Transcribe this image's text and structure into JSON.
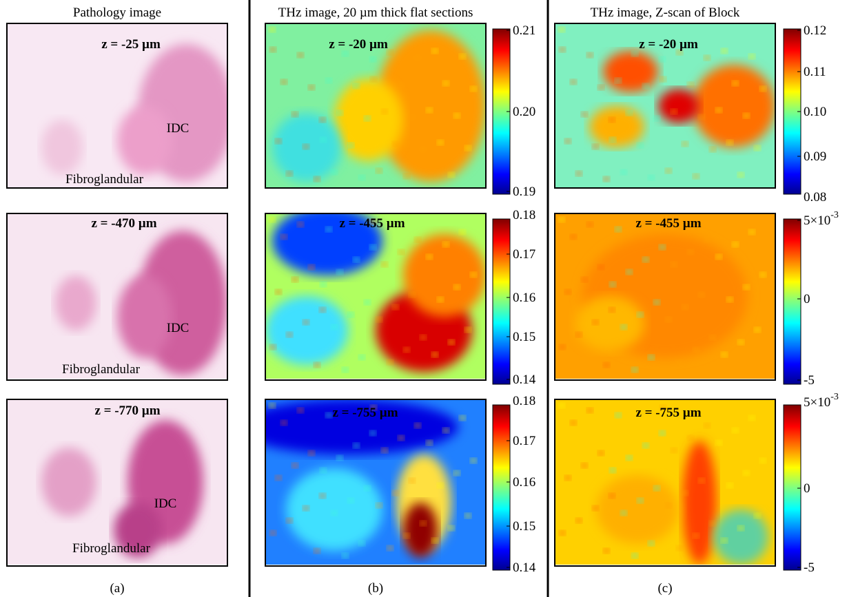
{
  "columns": [
    {
      "title": "Pathology image",
      "caption": "(a)",
      "panels": [
        {
          "z_label": "z = -25 µm",
          "annotations": [
            "IDC",
            "Fibroglandular"
          ]
        },
        {
          "z_label": "z = -470 µm",
          "annotations": [
            "IDC",
            "Fibroglandular"
          ]
        },
        {
          "z_label": "z = -770 µm",
          "annotations": [
            "IDC",
            "Fibroglandular"
          ]
        }
      ]
    },
    {
      "title": "THz image, 20 µm thick flat sections",
      "caption": "(b)",
      "panels": [
        {
          "z_label": "z = -20 µm",
          "colorbar_ticks": [
            "0.21",
            "0.20",
            "0.19"
          ]
        },
        {
          "z_label": "z = -455 µm",
          "colorbar_ticks": [
            "0.18",
            "0.17",
            "0.16",
            "0.15",
            "0.14"
          ]
        },
        {
          "z_label": "z = -755 µm",
          "colorbar_ticks": [
            "0.18",
            "0.17",
            "0.16",
            "0.15",
            "0.14"
          ]
        }
      ]
    },
    {
      "title": "THz image, Z-scan of Block",
      "caption": "(c)",
      "panels": [
        {
          "z_label": "z = -20 µm",
          "colorbar_ticks": [
            "0.12",
            "0.11",
            "0.10",
            "0.09",
            "0.08"
          ]
        },
        {
          "z_label": "z = -455 µm",
          "colorbar_ticks": [
            {
              "mantissa": "5",
              "base": "×10",
              "exponent": "-3"
            },
            "0",
            "-5"
          ]
        },
        {
          "z_label": "z = -755 µm",
          "colorbar_ticks": [
            {
              "mantissa": "5",
              "base": "×10",
              "exponent": "-3"
            },
            "0",
            "-5"
          ]
        }
      ]
    }
  ]
}
